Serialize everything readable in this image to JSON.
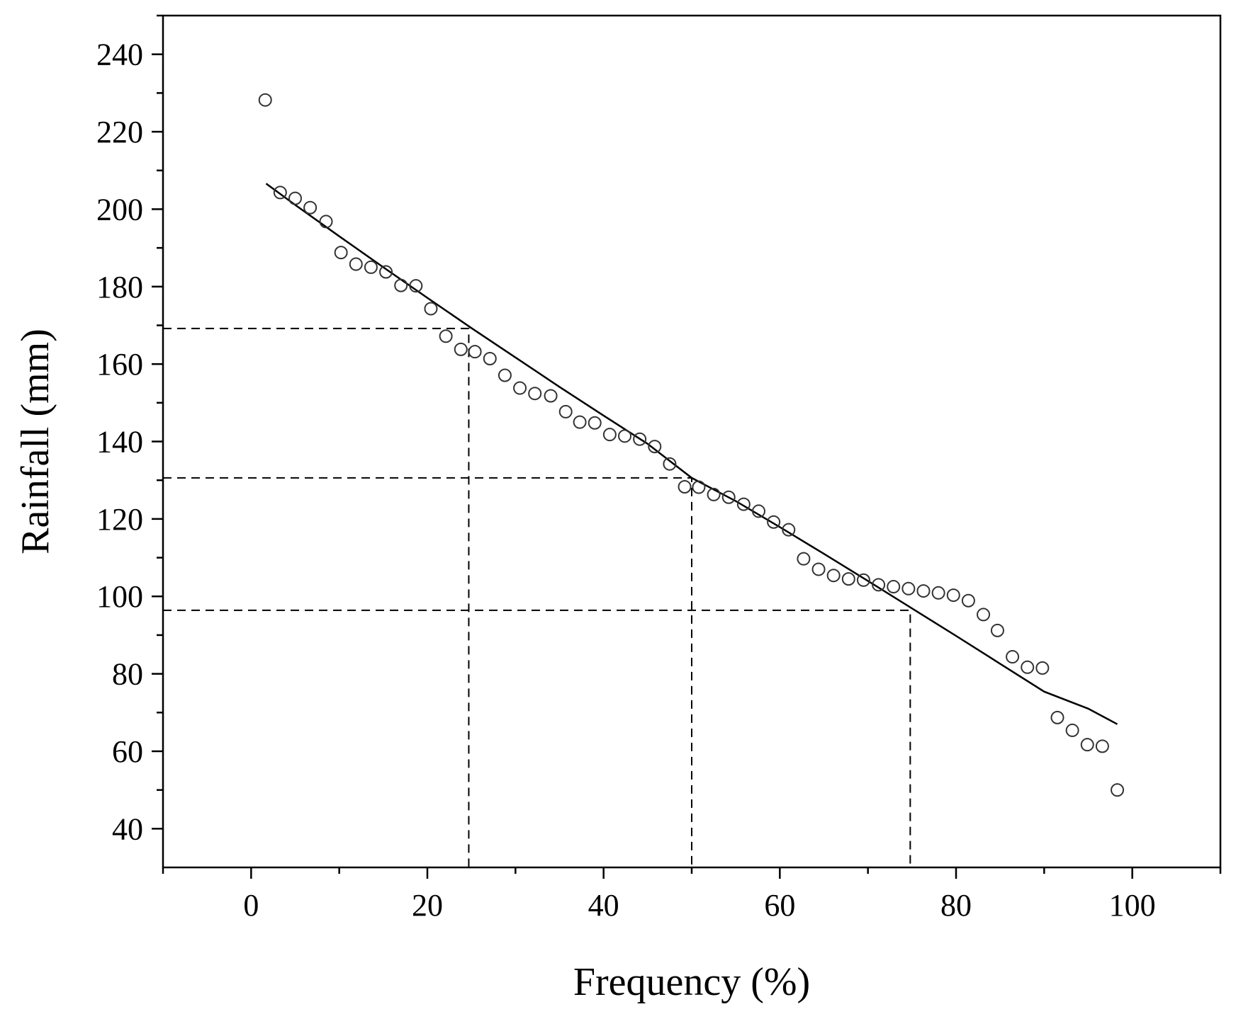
{
  "chart_data": {
    "type": "scatter",
    "title": "",
    "xlabel": "Frequency (%)",
    "ylabel": "Rainfall (mm)",
    "xlim": [
      -10,
      110
    ],
    "ylim": [
      30,
      250
    ],
    "xticks": [
      0,
      20,
      40,
      60,
      80,
      100
    ],
    "yticks": [
      40,
      60,
      80,
      100,
      120,
      140,
      160,
      180,
      200,
      220,
      240
    ],
    "grid": false,
    "legend": "none",
    "series": [
      {
        "kind": "points",
        "marker": "open-circle",
        "points": [
          [
            1.6,
            228.2
          ],
          [
            3.3,
            204.3
          ],
          [
            5.0,
            202.8
          ],
          [
            6.7,
            200.4
          ],
          [
            8.5,
            196.8
          ],
          [
            10.2,
            188.8
          ],
          [
            11.9,
            185.8
          ],
          [
            13.6,
            185.0
          ],
          [
            15.3,
            183.8
          ],
          [
            17.0,
            180.3
          ],
          [
            18.7,
            180.2
          ],
          [
            20.4,
            174.3
          ],
          [
            22.1,
            167.2
          ],
          [
            23.8,
            163.8
          ],
          [
            25.4,
            163.2
          ],
          [
            27.1,
            161.4
          ],
          [
            28.8,
            157.1
          ],
          [
            30.5,
            153.8
          ],
          [
            32.2,
            152.4
          ],
          [
            34.0,
            151.8
          ],
          [
            35.7,
            147.7
          ],
          [
            37.3,
            145.0
          ],
          [
            39.0,
            144.8
          ],
          [
            40.7,
            141.8
          ],
          [
            42.4,
            141.4
          ],
          [
            44.1,
            140.6
          ],
          [
            45.8,
            138.7
          ],
          [
            47.5,
            134.2
          ],
          [
            49.2,
            128.3
          ],
          [
            50.8,
            128.2
          ],
          [
            52.5,
            126.3
          ],
          [
            54.2,
            125.6
          ],
          [
            55.9,
            123.8
          ],
          [
            57.6,
            122.0
          ],
          [
            59.3,
            119.2
          ],
          [
            61.0,
            117.2
          ],
          [
            62.7,
            109.7
          ],
          [
            64.4,
            107.0
          ],
          [
            66.1,
            105.4
          ],
          [
            67.8,
            104.5
          ],
          [
            69.5,
            104.2
          ],
          [
            71.2,
            103.0
          ],
          [
            72.9,
            102.5
          ],
          [
            74.6,
            102.0
          ],
          [
            76.3,
            101.4
          ],
          [
            78.0,
            100.9
          ],
          [
            79.7,
            100.3
          ],
          [
            81.4,
            98.9
          ],
          [
            83.1,
            95.3
          ],
          [
            84.7,
            91.2
          ],
          [
            86.4,
            84.4
          ],
          [
            88.1,
            81.7
          ],
          [
            89.8,
            81.5
          ],
          [
            91.5,
            68.7
          ],
          [
            93.2,
            65.4
          ],
          [
            94.9,
            61.7
          ],
          [
            96.6,
            61.3
          ],
          [
            98.3,
            50.0
          ]
        ]
      },
      {
        "kind": "fit-curve",
        "points": [
          [
            1.7,
            206.6
          ],
          [
            5,
            201.1
          ],
          [
            10,
            193.0
          ],
          [
            15,
            185.0
          ],
          [
            20,
            177.1
          ],
          [
            25,
            169.3
          ],
          [
            30,
            161.7
          ],
          [
            35,
            154.1
          ],
          [
            40,
            146.7
          ],
          [
            45,
            139.4
          ],
          [
            50,
            130.6
          ],
          [
            55,
            124.6
          ],
          [
            60,
            117.9
          ],
          [
            65,
            111.0
          ],
          [
            70,
            104.0
          ],
          [
            75,
            96.9
          ],
          [
            80,
            89.8
          ],
          [
            85,
            82.6
          ],
          [
            90,
            75.4
          ],
          [
            95,
            71.0
          ],
          [
            98.3,
            67.0
          ]
        ]
      }
    ],
    "reference_lines": [
      {
        "x": 24.7,
        "y": 169.2
      },
      {
        "x": 50.0,
        "y": 130.6
      },
      {
        "x": 74.8,
        "y": 96.4
      }
    ]
  }
}
